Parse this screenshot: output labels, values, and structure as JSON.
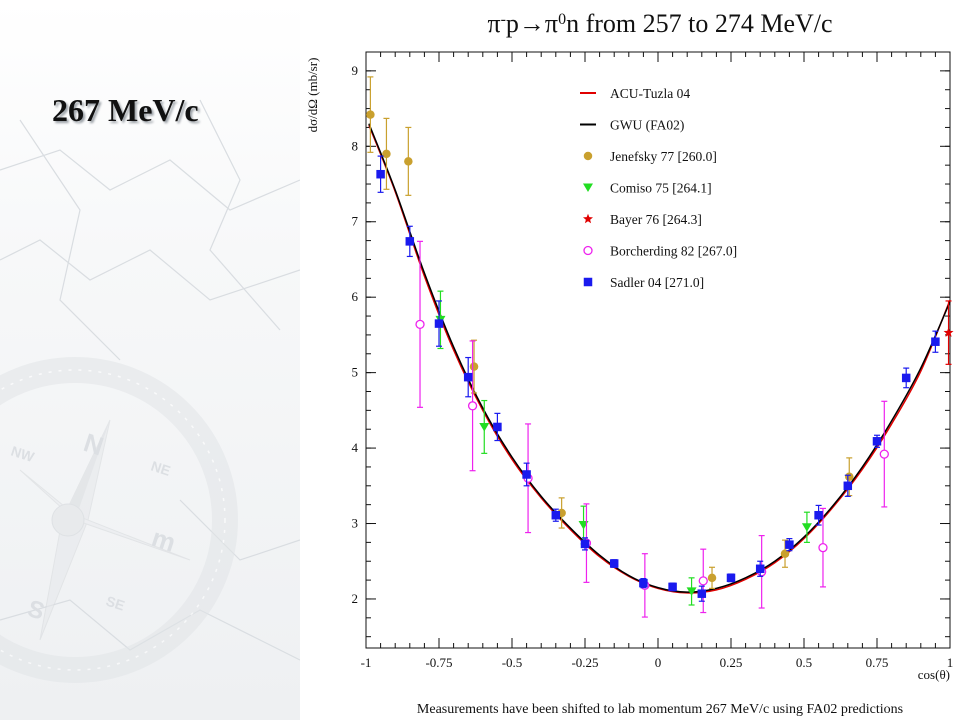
{
  "slide": {
    "label": "267 MeV/c",
    "footnote": "Measurements have been shifted to lab momentum 267 MeV/c using FA02 predictions"
  },
  "chart_data": {
    "type": "scatter",
    "title": {
      "parts": [
        {
          "t": "π",
          "sup": false
        },
        {
          "t": "-",
          "sup": true
        },
        {
          "t": "p→π",
          "sup": false
        },
        {
          "t": "0",
          "sup": true
        },
        {
          "t": "n from 257 to 274 MeV/c",
          "sup": false
        }
      ]
    },
    "xlabel": "cos(θ)",
    "ylabel": "dσ/dΩ (mb/sr)",
    "xlim": [
      -1,
      1
    ],
    "ylim": [
      1.35,
      9.25
    ],
    "xticks": [
      -1,
      -0.75,
      -0.5,
      -0.25,
      0,
      0.25,
      0.5,
      0.75,
      1
    ],
    "xtick_labels": [
      "-1",
      "-0.75",
      "-0.5",
      "-0.25",
      "0",
      "0.25",
      "0.5",
      "0.75",
      "1"
    ],
    "yticks": [
      2,
      3,
      4,
      5,
      6,
      7,
      8,
      9
    ],
    "ytick_labels": [
      "2",
      "3",
      "4",
      "5",
      "6",
      "7",
      "8",
      "9"
    ],
    "grid": false,
    "legend_position": "top-right",
    "curves": [
      {
        "name": "ACU-Tuzla 04",
        "color": "#e00000",
        "points": [
          [
            -0.99,
            8.28
          ],
          [
            -0.9,
            7.4
          ],
          [
            -0.8,
            6.28
          ],
          [
            -0.7,
            5.3
          ],
          [
            -0.6,
            4.5
          ],
          [
            -0.5,
            3.85
          ],
          [
            -0.4,
            3.34
          ],
          [
            -0.3,
            2.92
          ],
          [
            -0.2,
            2.56
          ],
          [
            -0.1,
            2.3
          ],
          [
            0,
            2.14
          ],
          [
            0.1,
            2.08
          ],
          [
            0.2,
            2.12
          ],
          [
            0.3,
            2.26
          ],
          [
            0.4,
            2.48
          ],
          [
            0.5,
            2.8
          ],
          [
            0.6,
            3.22
          ],
          [
            0.7,
            3.72
          ],
          [
            0.8,
            4.32
          ],
          [
            0.9,
            5.02
          ],
          [
            1.0,
            5.96
          ]
        ]
      },
      {
        "name": "GWU (FA02)",
        "color": "#000000",
        "points": [
          [
            -0.99,
            8.3
          ],
          [
            -0.9,
            7.42
          ],
          [
            -0.8,
            6.32
          ],
          [
            -0.7,
            5.34
          ],
          [
            -0.6,
            4.53
          ],
          [
            -0.5,
            3.88
          ],
          [
            -0.4,
            3.36
          ],
          [
            -0.3,
            2.94
          ],
          [
            -0.2,
            2.58
          ],
          [
            -0.1,
            2.31
          ],
          [
            0,
            2.15
          ],
          [
            0.1,
            2.09
          ],
          [
            0.2,
            2.14
          ],
          [
            0.3,
            2.28
          ],
          [
            0.4,
            2.5
          ],
          [
            0.5,
            2.82
          ],
          [
            0.6,
            3.24
          ],
          [
            0.7,
            3.75
          ],
          [
            0.8,
            4.36
          ],
          [
            0.9,
            5.06
          ],
          [
            1.0,
            5.94
          ]
        ]
      }
    ],
    "series": [
      {
        "name": "Jenefsky 77  [260.0]",
        "color": "#c9a02e",
        "marker": "circle-filled",
        "points": [
          {
            "x": -0.985,
            "y": 8.42,
            "err": 0.5
          },
          {
            "x": -0.93,
            "y": 7.9,
            "err": 0.47
          },
          {
            "x": -0.855,
            "y": 7.8,
            "err": 0.45
          },
          {
            "x": -0.63,
            "y": 5.08,
            "err": 0.35
          },
          {
            "x": -0.33,
            "y": 3.14,
            "err": 0.2
          },
          {
            "x": 0.185,
            "y": 2.28,
            "err": 0.14
          },
          {
            "x": 0.435,
            "y": 2.6,
            "err": 0.18
          },
          {
            "x": 0.655,
            "y": 3.62,
            "err": 0.25
          }
        ]
      },
      {
        "name": "Comiso 75  [264.1]",
        "color": "#22dd22",
        "marker": "triangle-down",
        "points": [
          {
            "x": -0.745,
            "y": 5.7,
            "err": 0.38
          },
          {
            "x": -0.595,
            "y": 4.28,
            "err": 0.35
          },
          {
            "x": -0.255,
            "y": 2.98,
            "err": 0.25
          },
          {
            "x": 0.115,
            "y": 2.1,
            "err": 0.18
          },
          {
            "x": 0.51,
            "y": 2.95,
            "err": 0.2
          }
        ]
      },
      {
        "name": "Bayer 76  [264.3]",
        "color": "#e00000",
        "marker": "star",
        "points": [
          {
            "x": 0.995,
            "y": 5.53,
            "err": 0.42
          }
        ]
      },
      {
        "name": "Borcherding 82  [267.0]",
        "color": "#ee22ee",
        "marker": "circle-open",
        "points": [
          {
            "x": -0.815,
            "y": 5.64,
            "err": 1.1
          },
          {
            "x": -0.635,
            "y": 4.56,
            "err": 0.86
          },
          {
            "x": -0.445,
            "y": 3.6,
            "err": 0.72
          },
          {
            "x": -0.245,
            "y": 2.74,
            "err": 0.52
          },
          {
            "x": -0.045,
            "y": 2.18,
            "err": 0.42
          },
          {
            "x": 0.155,
            "y": 2.24,
            "err": 0.42
          },
          {
            "x": 0.355,
            "y": 2.36,
            "err": 0.48
          },
          {
            "x": 0.565,
            "y": 2.68,
            "err": 0.52
          },
          {
            "x": 0.775,
            "y": 3.92,
            "err": 0.7
          }
        ]
      },
      {
        "name": "Sadler 04  [271.0]",
        "color": "#1a1aee",
        "marker": "square",
        "points": [
          {
            "x": -0.95,
            "y": 7.63,
            "err": 0.24
          },
          {
            "x": -0.85,
            "y": 6.74,
            "err": 0.2
          },
          {
            "x": -0.75,
            "y": 5.65,
            "err": 0.3
          },
          {
            "x": -0.65,
            "y": 4.94,
            "err": 0.26
          },
          {
            "x": -0.55,
            "y": 4.28,
            "err": 0.18
          },
          {
            "x": -0.45,
            "y": 3.65,
            "err": 0.15
          },
          {
            "x": -0.35,
            "y": 3.11,
            "err": 0.08
          },
          {
            "x": -0.25,
            "y": 2.73,
            "err": 0.08
          },
          {
            "x": -0.15,
            "y": 2.47,
            "err": 0.05
          },
          {
            "x": -0.05,
            "y": 2.21,
            "err": 0.06
          },
          {
            "x": 0.05,
            "y": 2.16,
            "err": 0.05
          },
          {
            "x": 0.15,
            "y": 2.07,
            "err": 0.1
          },
          {
            "x": 0.25,
            "y": 2.28,
            "err": 0.05
          },
          {
            "x": 0.35,
            "y": 2.4,
            "err": 0.1
          },
          {
            "x": 0.45,
            "y": 2.72,
            "err": 0.08
          },
          {
            "x": 0.55,
            "y": 3.11,
            "err": 0.13
          },
          {
            "x": 0.65,
            "y": 3.5,
            "err": 0.14
          },
          {
            "x": 0.75,
            "y": 4.09,
            "err": 0.08
          },
          {
            "x": 0.85,
            "y": 4.93,
            "err": 0.13
          },
          {
            "x": 0.95,
            "y": 5.41,
            "err": 0.14
          }
        ]
      }
    ]
  }
}
